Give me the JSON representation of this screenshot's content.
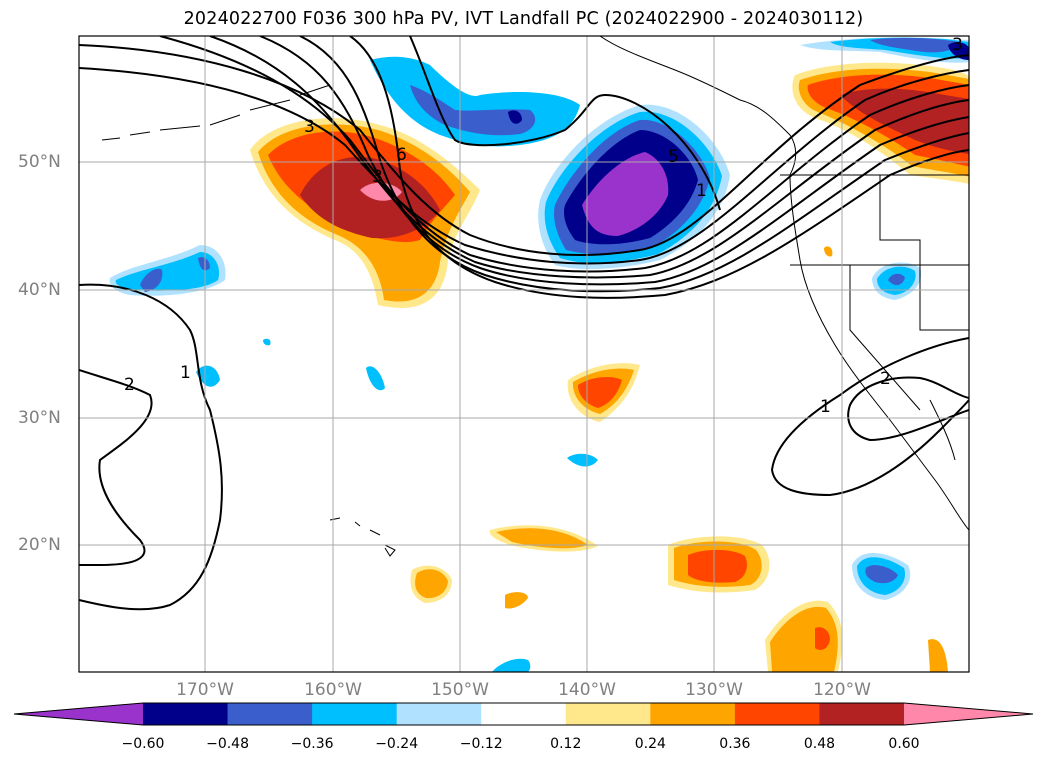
{
  "title": "2024022700 F036 300 hPa PV, IVT Landfall PC (2024022900 - 2024030112)",
  "lat_labels": [
    "50°N",
    "40°N",
    "30°N",
    "20°N"
  ],
  "lon_labels": [
    "170°W",
    "160°W",
    "150°W",
    "140°W",
    "130°W",
    "120°W"
  ],
  "colorbar": {
    "ticks": [
      "−0.60",
      "−0.48",
      "−0.36",
      "−0.24",
      "−0.12",
      "0.12",
      "0.24",
      "0.36",
      "0.48",
      "0.60"
    ],
    "colors": [
      "#9933cc",
      "#00008b",
      "#3a5fcd",
      "#00bfff",
      "#b0e2ff",
      "#ffffff",
      "#ffe88c",
      "#ffa500",
      "#ff4500",
      "#b22222",
      "#ff88aa"
    ]
  },
  "contour_labels": [
    "3",
    "6",
    "3",
    "5",
    "1",
    "1",
    "2",
    "1",
    "2",
    "3"
  ]
}
